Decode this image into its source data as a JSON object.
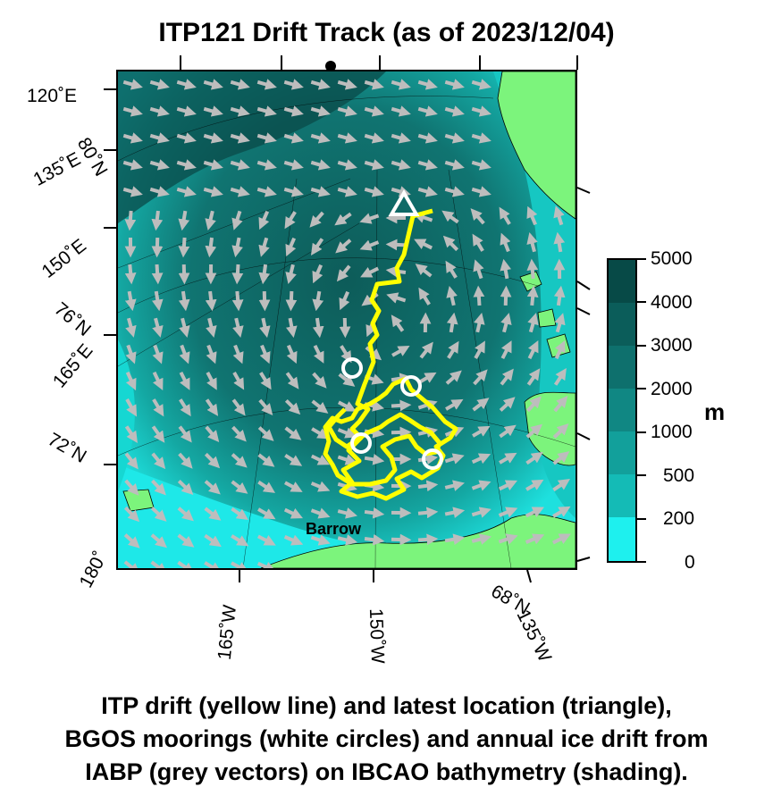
{
  "title": "ITP121 Drift Track (as of 2023/12/04)",
  "map": {
    "place_label": "Barrow",
    "lon_labels_left": [
      "120˚E",
      "135˚E",
      "150˚E",
      "165˚E",
      "180˚"
    ],
    "lat_labels_left": [
      "80˚N",
      "76˚N",
      "72˚N"
    ],
    "lon_labels_bottom": [
      "165˚W",
      "150˚W",
      "135˚W"
    ],
    "lat_label_bottom": "68˚N",
    "colors": {
      "land": "#7cf47c",
      "track": "#ffff00",
      "vectors": "#bdbdbd",
      "moorings": "#ffffff",
      "shallow": "#1ee8e8",
      "deep": "#0a4a48"
    },
    "latest_location_marker": "triangle",
    "mooring_marker": "circle",
    "mooring_count": 4
  },
  "colorbar": {
    "unit": "m",
    "labels": [
      "5000",
      "4000",
      "3000",
      "2000",
      "1000",
      "500",
      "200",
      "0"
    ],
    "colors": [
      "#074a47",
      "#0b5d5a",
      "#0e706d",
      "#108783",
      "#12a09b",
      "#14bbb6",
      "#16d7d2",
      "#1ef0ee"
    ]
  },
  "caption": {
    "line1": "ITP drift (yellow line) and latest location (triangle),",
    "line2": "BGOS moorings (white circles) and annual ice drift from",
    "line3": "IABP (grey vectors) on IBCAO bathymetry (shading)."
  }
}
